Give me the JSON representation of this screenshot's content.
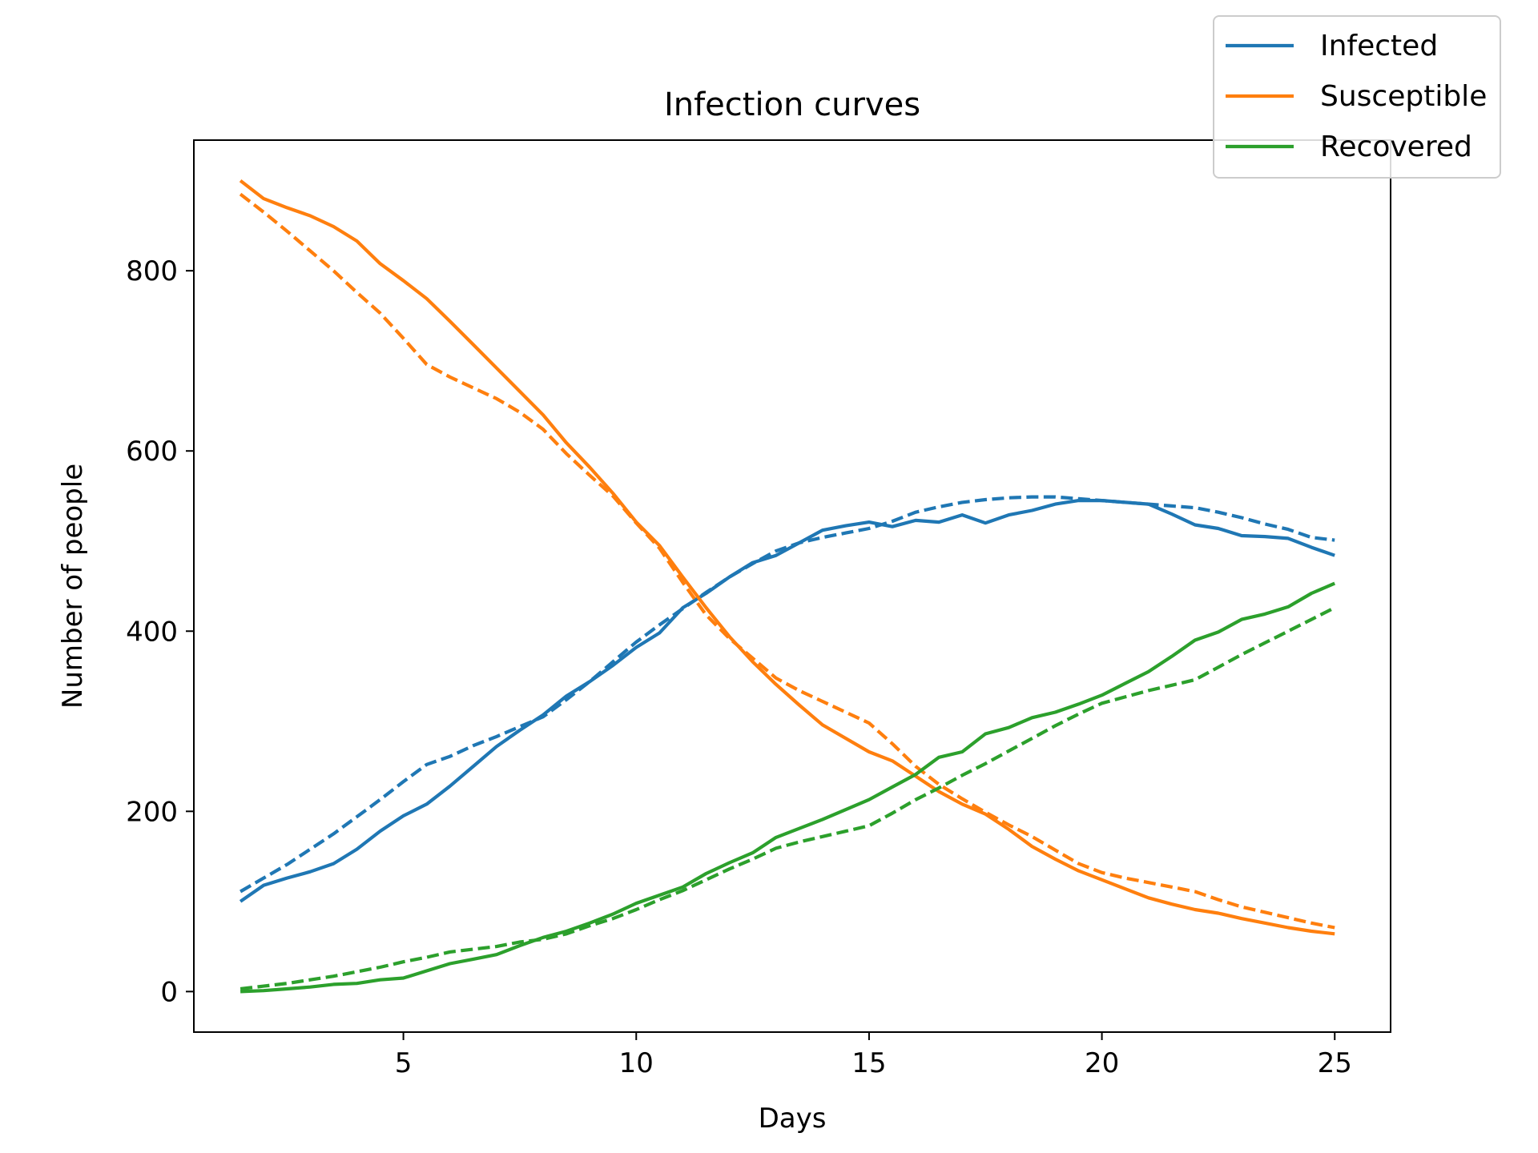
{
  "chart_data": {
    "type": "line",
    "title": "Infection curves",
    "xlabel": "Days",
    "ylabel": "Number of people",
    "xlim": [
      0.5,
      26.2
    ],
    "ylim": [
      -45,
      945
    ],
    "xticks": [
      5,
      10,
      15,
      20,
      25
    ],
    "yticks": [
      0,
      200,
      400,
      600,
      800
    ],
    "grid": false,
    "legend_position": "top-right",
    "colors": {
      "Infected": "#1f77b4",
      "Susceptible": "#ff7f0e",
      "Recovered": "#2ca02c"
    },
    "x": [
      1.5,
      2,
      2.5,
      3,
      3.5,
      4,
      4.5,
      5,
      5.5,
      6,
      6.5,
      7,
      7.5,
      8,
      8.5,
      9,
      9.5,
      10,
      10.5,
      11,
      11.5,
      12,
      12.5,
      13,
      13.5,
      14,
      14.5,
      15,
      15.5,
      16,
      16.5,
      17,
      17.5,
      18,
      18.5,
      19,
      19.5,
      20,
      20.5,
      21,
      21.5,
      22,
      22.5,
      23,
      23.5,
      24,
      24.5,
      25
    ],
    "series": [
      {
        "name": "Infected",
        "style": "solid",
        "values": [
          100,
          118,
          126,
          133,
          142,
          158,
          178,
          195,
          208,
          228,
          250,
          272,
          290,
          307,
          328,
          344,
          362,
          382,
          398,
          426,
          442,
          460,
          476,
          484,
          498,
          512,
          517,
          521,
          516,
          523,
          521,
          529,
          520,
          529,
          534,
          541,
          545,
          545,
          543,
          541,
          530,
          518,
          514,
          506,
          505,
          503,
          493,
          484
        ]
      },
      {
        "name": "Infected",
        "style": "dashed",
        "values": [
          111,
          126,
          141,
          158,
          175,
          194,
          213,
          233,
          252,
          261,
          273,
          283,
          294,
          305,
          324,
          344,
          366,
          388,
          407,
          425,
          443,
          460,
          475,
          489,
          498,
          504,
          509,
          514,
          522,
          532,
          538,
          543,
          546,
          548,
          549,
          549,
          547,
          545,
          543,
          541,
          539,
          537,
          532,
          526,
          519,
          513,
          504,
          501
        ]
      },
      {
        "name": "Susceptible",
        "style": "solid",
        "values": [
          900,
          880,
          870,
          861,
          849,
          833,
          808,
          789,
          769,
          744,
          718,
          692,
          666,
          640,
          609,
          582,
          553,
          521,
          495,
          460,
          426,
          394,
          366,
          341,
          318,
          296,
          281,
          266,
          256,
          239,
          222,
          208,
          197,
          180,
          161,
          147,
          134,
          124,
          114,
          104,
          97,
          91,
          87,
          81,
          76,
          71,
          67,
          64
        ]
      },
      {
        "name": "Susceptible",
        "style": "dashed",
        "values": [
          885,
          865,
          844,
          822,
          800,
          776,
          753,
          725,
          696,
          682,
          670,
          658,
          643,
          624,
          597,
          573,
          550,
          520,
          492,
          454,
          418,
          392,
          370,
          348,
          334,
          322,
          310,
          298,
          275,
          250,
          230,
          214,
          199,
          185,
          172,
          157,
          142,
          132,
          126,
          121,
          116,
          111,
          102,
          94,
          88,
          82,
          76,
          71
        ]
      },
      {
        "name": "Recovered",
        "style": "solid",
        "values": [
          0,
          1,
          3,
          5,
          8,
          9,
          13,
          15,
          23,
          31,
          36,
          41,
          51,
          60,
          67,
          76,
          86,
          98,
          107,
          116,
          131,
          143,
          154,
          171,
          181,
          191,
          202,
          213,
          227,
          241,
          260,
          266,
          286,
          293,
          304,
          310,
          319,
          329,
          342,
          355,
          372,
          390,
          399,
          413,
          419,
          427,
          442,
          453
        ]
      },
      {
        "name": "Recovered",
        "style": "dashed",
        "values": [
          3,
          6,
          9,
          13,
          17,
          22,
          27,
          33,
          38,
          44,
          47,
          50,
          55,
          58,
          64,
          73,
          81,
          91,
          102,
          112,
          124,
          136,
          147,
          159,
          166,
          172,
          178,
          184,
          198,
          213,
          226,
          240,
          253,
          267,
          281,
          295,
          308,
          320,
          327,
          334,
          340,
          346,
          360,
          374,
          387,
          400,
          413,
          426
        ]
      }
    ],
    "legend": [
      "Infected",
      "Susceptible",
      "Recovered"
    ]
  }
}
